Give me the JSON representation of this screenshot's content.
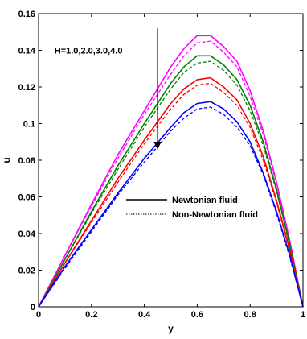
{
  "chart_data": {
    "type": "line",
    "xlabel": "y",
    "ylabel": "u",
    "xlim": [
      0,
      1
    ],
    "ylim": [
      0,
      0.16
    ],
    "x_ticks": [
      "0",
      "0.2",
      "0.4",
      "0.6",
      "0.8",
      "1"
    ],
    "y_ticks": [
      "0",
      "0.02",
      "0.04",
      "0.06",
      "0.08",
      "0.1",
      "0.12",
      "0.14",
      "0.16"
    ],
    "grid": false,
    "annotation": "H=1.0,2.0,3.0,4.0",
    "arrow_direction": "down",
    "legend": [
      {
        "label": "Newtonian fluid",
        "style": "solid"
      },
      {
        "label": "Non-Newtonian fluid",
        "style": "dotted"
      }
    ],
    "legend_position": "center",
    "x": [
      0,
      0.1,
      0.2,
      0.3,
      0.4,
      0.5,
      0.55,
      0.6,
      0.65,
      0.7,
      0.75,
      0.8,
      0.85,
      0.9,
      0.95,
      1.0
    ],
    "series": [
      {
        "color": "#ff00ff",
        "style": "solid",
        "values": [
          0,
          0.028,
          0.056,
          0.083,
          0.107,
          0.131,
          0.141,
          0.148,
          0.148,
          0.142,
          0.134,
          0.118,
          0.096,
          0.068,
          0.036,
          0
        ]
      },
      {
        "color": "#ff00ff",
        "style": "dashed",
        "values": [
          0,
          0.028,
          0.055,
          0.081,
          0.105,
          0.127,
          0.137,
          0.144,
          0.145,
          0.139,
          0.131,
          0.115,
          0.094,
          0.067,
          0.035,
          0
        ]
      },
      {
        "color": "#008000",
        "style": "solid",
        "values": [
          0,
          0.026,
          0.052,
          0.077,
          0.1,
          0.122,
          0.131,
          0.137,
          0.137,
          0.132,
          0.124,
          0.11,
          0.09,
          0.064,
          0.034,
          0
        ]
      },
      {
        "color": "#008000",
        "style": "dashed",
        "values": [
          0,
          0.026,
          0.051,
          0.075,
          0.098,
          0.119,
          0.128,
          0.133,
          0.134,
          0.129,
          0.121,
          0.107,
          0.088,
          0.063,
          0.033,
          0
        ]
      },
      {
        "color": "#ff0000",
        "style": "solid",
        "values": [
          0,
          0.024,
          0.047,
          0.07,
          0.091,
          0.111,
          0.119,
          0.124,
          0.125,
          0.12,
          0.113,
          0.1,
          0.082,
          0.058,
          0.031,
          0
        ]
      },
      {
        "color": "#ff0000",
        "style": "dashed",
        "values": [
          0,
          0.024,
          0.046,
          0.068,
          0.089,
          0.108,
          0.116,
          0.121,
          0.122,
          0.117,
          0.11,
          0.098,
          0.08,
          0.057,
          0.03,
          0
        ]
      },
      {
        "color": "#0000ff",
        "style": "solid",
        "values": [
          0,
          0.022,
          0.042,
          0.062,
          0.081,
          0.098,
          0.106,
          0.111,
          0.112,
          0.108,
          0.101,
          0.09,
          0.073,
          0.052,
          0.028,
          0
        ]
      },
      {
        "color": "#0000ff",
        "style": "dashed",
        "values": [
          0,
          0.021,
          0.041,
          0.061,
          0.079,
          0.096,
          0.103,
          0.108,
          0.109,
          0.105,
          0.098,
          0.088,
          0.072,
          0.051,
          0.027,
          0
        ]
      }
    ]
  }
}
